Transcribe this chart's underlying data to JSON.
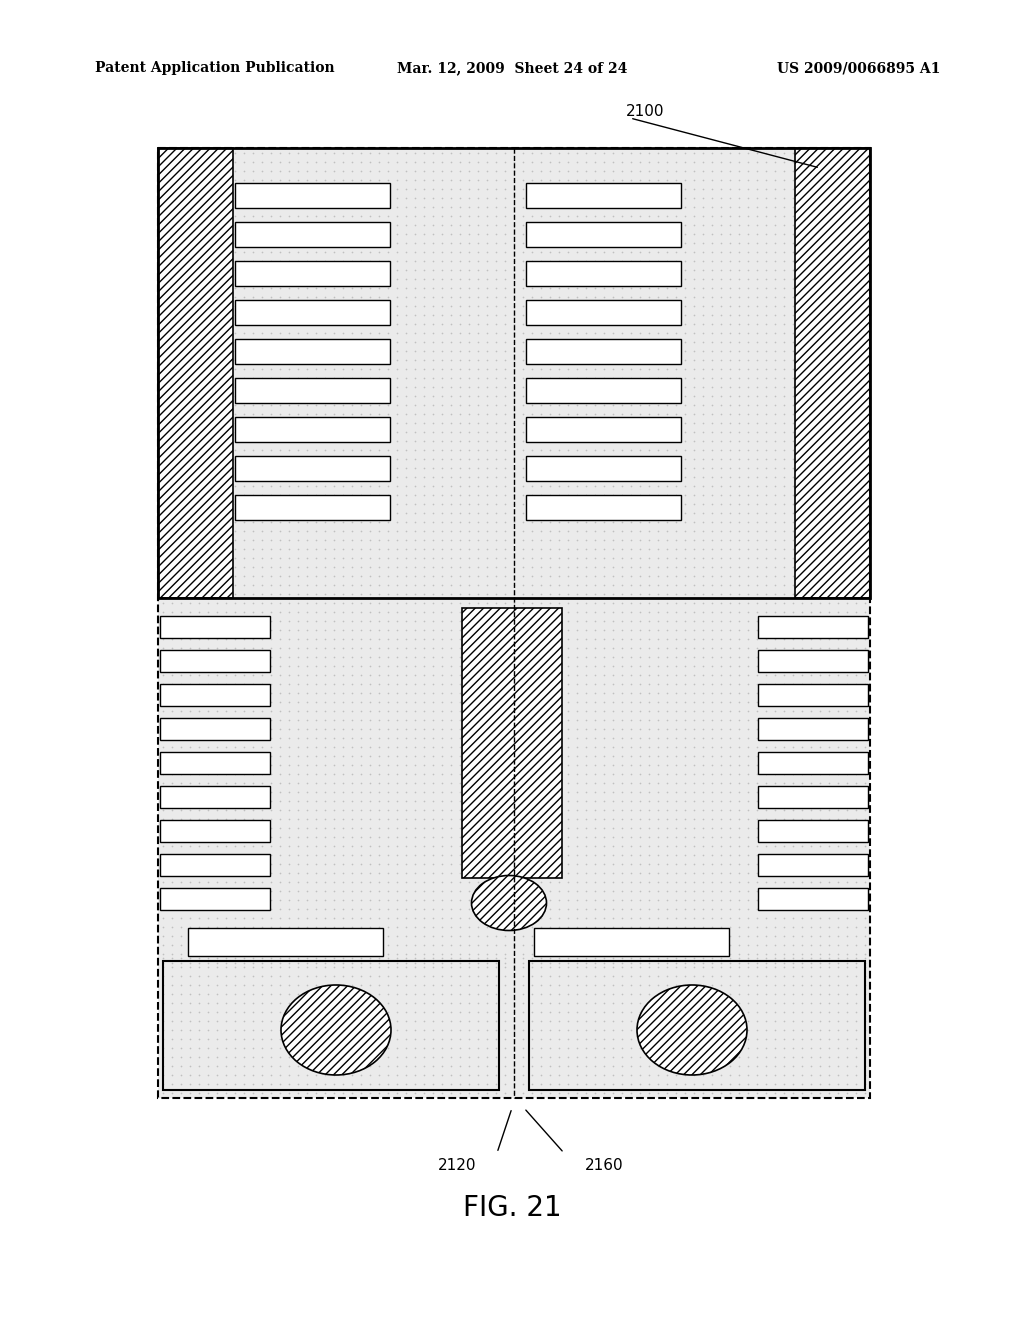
{
  "title": "FIG. 21",
  "header_left": "Patent Application Publication",
  "header_mid": "Mar. 12, 2009  Sheet 24 of 24",
  "header_right": "US 2009/0066895 A1",
  "label_2100": "2100",
  "label_2120": "2120",
  "label_2160": "2160",
  "bg_color": "#ffffff",
  "line_color": "#000000"
}
